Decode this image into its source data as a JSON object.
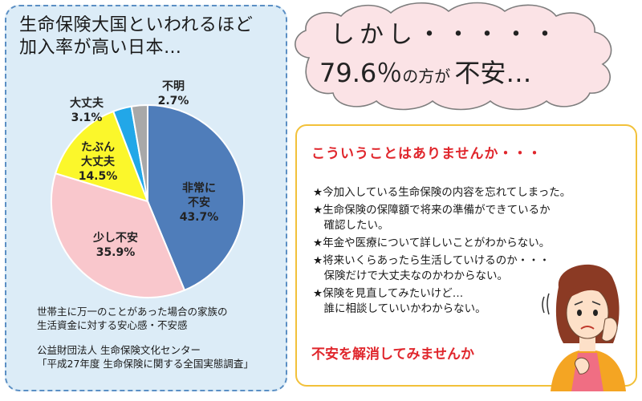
{
  "left_panel": {
    "title": "生命保険大国といわれるほど\n加入率が高い日本…",
    "note": "世帯主に万一のことがあった場合の家族の\n生活資金に対する安心感・不安感",
    "source": "公益財団法人 生命保険文化センター\n「平成27年度 生命保険に関する全国実態調査」"
  },
  "chart_data": {
    "type": "pie",
    "categories": [
      "非常に不安",
      "少し不安",
      "たぶん大丈夫",
      "大丈夫",
      "不明"
    ],
    "values": [
      43.7,
      35.9,
      14.5,
      3.1,
      2.7
    ],
    "labels": [
      "非常に\n不安\n43.7%",
      "少し不安\n35.9%",
      "たぶん\n大丈夫\n14.5%",
      "大丈夫\n3.1%",
      "不明\n2.7%"
    ],
    "colors": [
      "#4f7dba",
      "#f9c7cc",
      "#fbf72b",
      "#22a7e8",
      "#a8a8a8"
    ]
  },
  "cloud": {
    "line1": "しかし・・・・・",
    "line2_value": "79.6％",
    "line2_mid": "の方が",
    "line2_end": "不安…"
  },
  "right_panel": {
    "heading": "こういうことはありませんか・・・",
    "items": [
      "★今加入している生命保険の内容を忘れてしまった。",
      "★生命保険の保障額で将来の準備ができているか\n　確認したい。",
      "★年金や医療について詳しいことがわからない。",
      "★将来いくらあったら生活していけるのか・・・\n　保険だけで大丈夫なのかわからない。",
      "★保険を見直してみたいけど…\n　誰に相談していいかわからない。"
    ],
    "cta": "不安を解消してみませんか"
  }
}
